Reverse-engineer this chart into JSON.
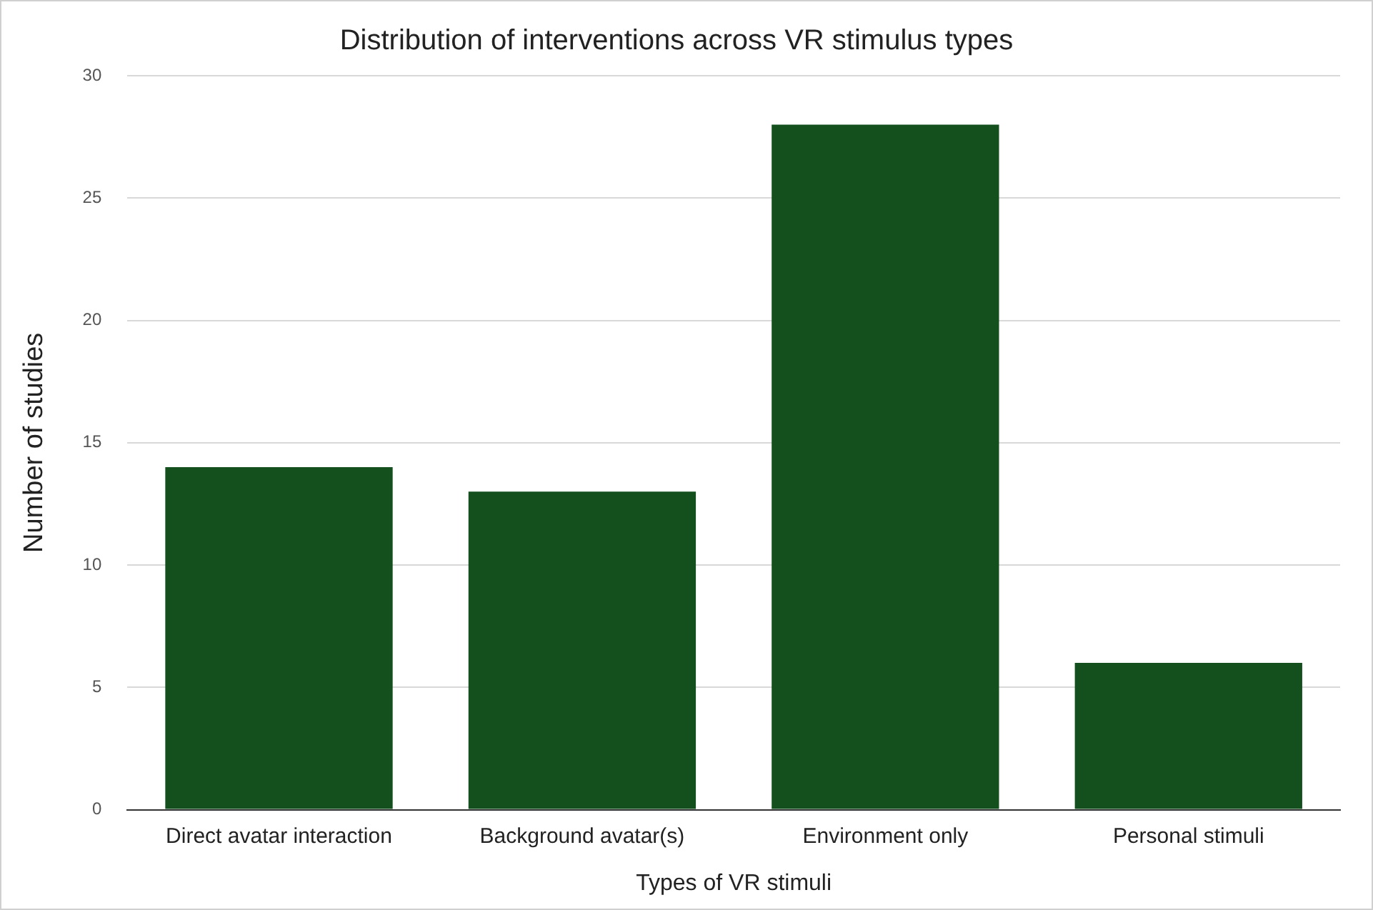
{
  "chart_data": {
    "type": "bar",
    "title": "Distribution of interventions across VR stimulus types",
    "xlabel": "Types of VR stimuli",
    "ylabel": "Number of studies",
    "categories": [
      "Direct avatar interaction",
      "Background avatar(s)",
      "Environment only",
      "Personal stimuli"
    ],
    "values": [
      14,
      13,
      28,
      6
    ],
    "color": "#14501e",
    "ylim": [
      0,
      30
    ],
    "yticks": [
      0,
      5,
      10,
      15,
      20,
      25,
      30
    ],
    "grid": "y",
    "legend": false
  }
}
